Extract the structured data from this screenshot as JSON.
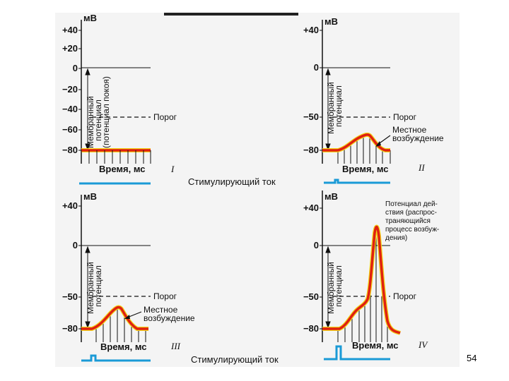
{
  "page_number": "54",
  "colors": {
    "response_red": "#e02010",
    "response_yellow": "#f2d31a",
    "stimulus_blue": "#1a9ad6",
    "axis": "#111111"
  },
  "panels": [
    {
      "numeral": "I",
      "unit": "мВ",
      "ticks": [
        "+40",
        "+20",
        "0",
        "−20",
        "−40",
        "−60",
        "−80"
      ],
      "membrane_label": [
        "Мембранный",
        "потенциал",
        "(потенциал покоя)"
      ],
      "threshold_label": "Порог",
      "xlabel": "Время, мс",
      "response_note": []
    },
    {
      "numeral": "II",
      "unit": "мВ",
      "ticks": [
        "+40",
        "0",
        "−50",
        "−80"
      ],
      "membrane_label": [
        "Мембранный",
        "потенциал"
      ],
      "threshold_label": "Порог",
      "xlabel": "Время, мс",
      "response_note": [
        "Местное",
        "возбуждение"
      ]
    },
    {
      "numeral": "III",
      "unit": "мВ",
      "ticks": [
        "+40",
        "0",
        "−50",
        "−80"
      ],
      "membrane_label": [
        "Мембранный",
        "потенциал"
      ],
      "threshold_label": "Порог",
      "xlabel": "Время, мс",
      "response_note": [
        "Местное",
        "возбуждение"
      ]
    },
    {
      "numeral": "IV",
      "unit": "мВ",
      "ticks": [
        "+40",
        "0",
        "−50",
        "−80"
      ],
      "membrane_label": [
        "Мембранный",
        "потенциал"
      ],
      "threshold_label": "Порог",
      "xlabel": "Время, мс",
      "response_note": [
        "Потенциал дей-",
        "ствия (распрос-",
        "траняющийся",
        "процесс возбуж-",
        "дения)"
      ]
    }
  ],
  "stimulus_labels": [
    "Стимулирующий ток",
    "Стимулирующий ток"
  ]
}
